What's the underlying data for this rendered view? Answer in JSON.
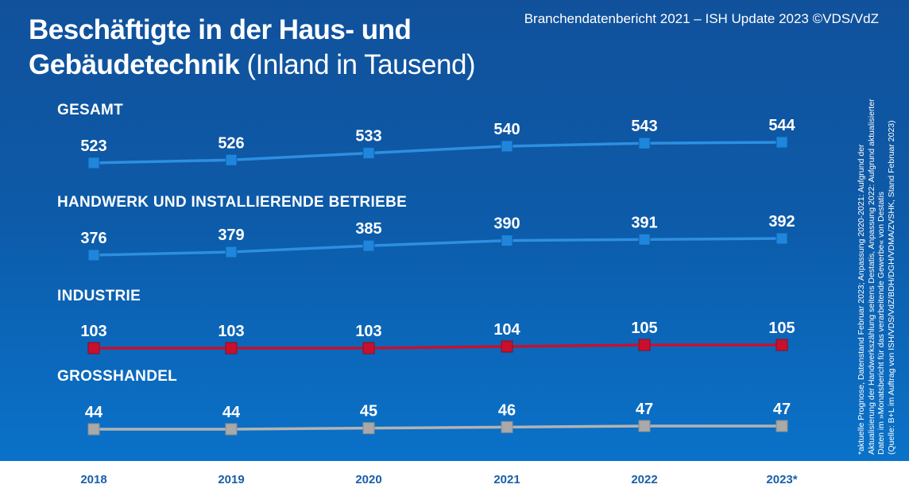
{
  "header": {
    "title_bold_line1": "Beschäftigte in der Haus- und",
    "title_bold_line2": "Gebäudetechnik",
    "title_regular": "(Inland in Tausend)",
    "source": "Branchendatenbericht 2021 – ISH Update 2023 ©VDS/VdZ"
  },
  "footnote": {
    "line1": "*aktuelle Prognose, Datenstand Februar 2023; Anpassung 2020-2021: Aufgrund der",
    "line2": "Aktualisierung der Handwerkszählung seitens Destatis, Anpassung 2022: Aufgrund aktualisierter",
    "line3": "Daten im »Monatsbericht für das verarbeitende Gewerbe« von Destatis",
    "line4": "(Quelle: B+L im Auftrag von ISH/VDS/VdZ/BDH/DGH/VDMA/ZVSHK, Stand Februar 2023)"
  },
  "chart_data": {
    "type": "line",
    "categories": [
      "2018",
      "2019",
      "2020",
      "2021",
      "2022",
      "2023*"
    ],
    "series": [
      {
        "name": "GESAMT",
        "values": [
          523,
          526,
          533,
          540,
          543,
          544
        ],
        "color": "#2e8fe0"
      },
      {
        "name": "HANDWERK UND INSTALLIERENDE BETRIEBE",
        "values": [
          376,
          379,
          385,
          390,
          391,
          392
        ],
        "color": "#2e8fe0"
      },
      {
        "name": "INDUSTRIE",
        "values": [
          103,
          103,
          103,
          104,
          105,
          105
        ],
        "color": "#c8102e"
      },
      {
        "name": "GROSSHANDEL",
        "values": [
          44,
          44,
          45,
          46,
          47,
          47
        ],
        "color": "#b3b3b3"
      }
    ]
  },
  "colors": {
    "background_top": "#11519b",
    "background_bottom": "#0a72c9",
    "axis_label": "#1a5ea8"
  }
}
